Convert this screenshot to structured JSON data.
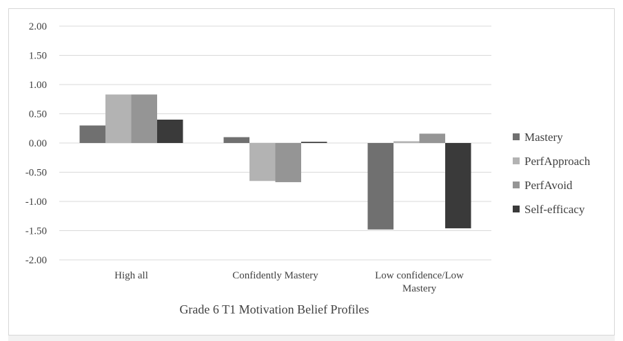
{
  "chart_data": {
    "type": "bar",
    "title": "Grade 6 T1 Motivation Belief Profiles",
    "categories": [
      "High all",
      "Confidently Mastery",
      "Low confidence/Low Mastery"
    ],
    "category_label_lines": [
      [
        "High all"
      ],
      [
        "Confidently Mastery"
      ],
      [
        "Low confidence/Low",
        "Mastery"
      ]
    ],
    "series": [
      {
        "name": "Mastery",
        "values": [
          0.3,
          0.1,
          -1.48
        ],
        "color": "#707070"
      },
      {
        "name": "PerfApproach",
        "values": [
          0.83,
          -0.65,
          0.03
        ],
        "color": "#b3b3b3"
      },
      {
        "name": "PerfAvoid",
        "values": [
          0.83,
          -0.67,
          0.16
        ],
        "color": "#959595"
      },
      {
        "name": "Self-efficacy",
        "values": [
          0.4,
          0.02,
          -1.46
        ],
        "color": "#3a3a3a"
      }
    ],
    "ylim": [
      -2.0,
      2.0
    ],
    "yticks": [
      "2.00",
      "1.50",
      "1.00",
      "0.50",
      "0.00",
      "-0.50",
      "-1.00",
      "-1.50",
      "-2.00"
    ],
    "ytick_values": [
      2.0,
      1.5,
      1.0,
      0.5,
      0.0,
      -0.5,
      -1.0,
      -1.5,
      -2.0
    ],
    "grid": true,
    "legend_position": "right"
  }
}
